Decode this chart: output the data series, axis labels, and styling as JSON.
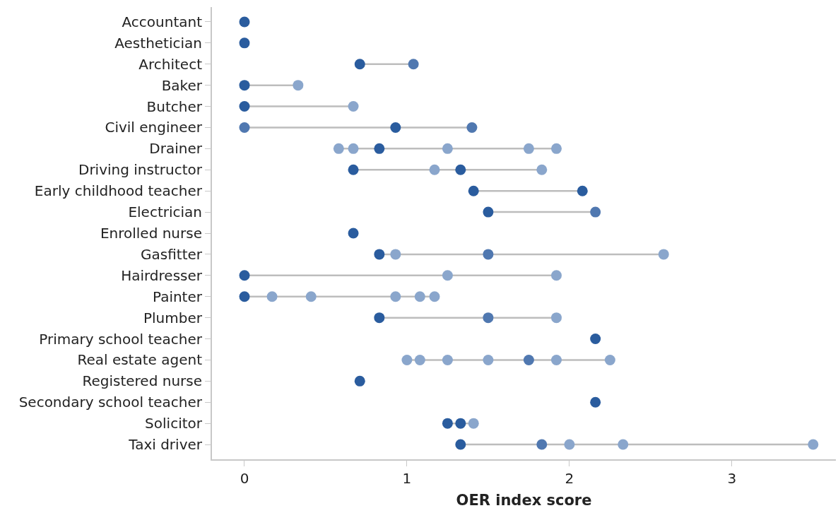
{
  "chart_data": {
    "type": "scatter",
    "orientation": "horizontal",
    "xlabel": "OER index score",
    "categories": [
      "Accountant",
      "Aesthetician",
      "Architect",
      "Baker",
      "Butcher",
      "Civil engineer",
      "Drainer",
      "Driving instructor",
      "Early childhood teacher",
      "Electrician",
      "Enrolled nurse",
      "Gasfitter",
      "Hairdresser",
      "Painter",
      "Plumber",
      "Primary school teacher",
      "Real estate agent",
      "Registered nurse",
      "Secondary school teacher",
      "Solicitor",
      "Taxi driver"
    ],
    "xlim": [
      -0.2,
      3.64
    ],
    "xticks": [
      0,
      1,
      2,
      3
    ],
    "marker": "circle",
    "line_style": "solid",
    "series": [
      {
        "values": [
          0,
          0,
          0.71,
          0,
          0,
          0,
          0.58,
          0.67,
          1.41,
          1.5,
          0.67,
          0.83,
          0,
          0,
          0.83,
          2.16,
          1.0,
          0.71,
          2.16,
          1.25,
          1.33
        ],
        "colors": [
          "#2a5c9e",
          "#2a5c9e",
          "#2a5c9e",
          "#2a5c9e",
          "#2a5c9e",
          "#5078b0",
          "#8aa6cc",
          "#2a5c9e",
          "#2a5c9e",
          "#2a5c9e",
          "#2a5c9e",
          "#2a5c9e",
          "#2a5c9e",
          "#2a5c9e",
          "#2a5c9e",
          "#2a5c9e",
          "#8aa6cc",
          "#2a5c9e",
          "#2a5c9e",
          "#2a5c9e",
          "#2a5c9e"
        ]
      },
      {
        "values": [
          null,
          null,
          1.04,
          0.33,
          0.67,
          0.93,
          0.67,
          1.17,
          2.08,
          2.16,
          null,
          0.93,
          1.25,
          0.17,
          1.5,
          null,
          1.08,
          null,
          null,
          1.33,
          1.83
        ],
        "colors": [
          null,
          null,
          "#5078b0",
          "#8aa6cc",
          "#8aa6cc",
          "#2a5c9e",
          "#8aa6cc",
          "#8aa6cc",
          "#2a5c9e",
          "#5078b0",
          null,
          "#8aa6cc",
          "#8aa6cc",
          "#8aa6cc",
          "#5078b0",
          null,
          "#8aa6cc",
          null,
          null,
          "#2a5c9e",
          "#5078b0"
        ]
      },
      {
        "values": [
          null,
          null,
          null,
          null,
          null,
          1.4,
          0.83,
          1.33,
          null,
          null,
          null,
          1.5,
          1.92,
          0.41,
          1.92,
          null,
          1.25,
          null,
          null,
          1.41,
          2.0
        ],
        "colors": [
          null,
          null,
          null,
          null,
          null,
          "#5078b0",
          "#2a5c9e",
          "#2a5c9e",
          null,
          null,
          null,
          "#5078b0",
          "#8aa6cc",
          "#8aa6cc",
          "#8aa6cc",
          null,
          "#8aa6cc",
          null,
          null,
          "#8aa6cc",
          "#8aa6cc"
        ]
      },
      {
        "values": [
          null,
          null,
          null,
          null,
          null,
          null,
          1.25,
          1.83,
          null,
          null,
          null,
          2.58,
          null,
          0.93,
          null,
          null,
          1.5,
          null,
          null,
          null,
          2.33
        ],
        "colors": [
          null,
          null,
          null,
          null,
          null,
          null,
          "#8aa6cc",
          "#8aa6cc",
          null,
          null,
          null,
          "#8aa6cc",
          null,
          "#8aa6cc",
          null,
          null,
          "#8aa6cc",
          null,
          null,
          null,
          "#8aa6cc"
        ]
      },
      {
        "values": [
          null,
          null,
          null,
          null,
          null,
          null,
          1.75,
          null,
          null,
          null,
          null,
          null,
          null,
          1.08,
          null,
          null,
          1.75,
          null,
          null,
          null,
          3.5
        ],
        "colors": [
          null,
          null,
          null,
          null,
          null,
          null,
          "#8aa6cc",
          null,
          null,
          null,
          null,
          null,
          null,
          "#8aa6cc",
          null,
          null,
          "#5078b0",
          null,
          null,
          null,
          "#8aa6cc"
        ]
      },
      {
        "values": [
          null,
          null,
          null,
          null,
          null,
          null,
          1.92,
          null,
          null,
          null,
          null,
          null,
          null,
          1.17,
          null,
          null,
          1.92,
          null,
          null,
          null,
          null
        ],
        "colors": [
          null,
          null,
          null,
          null,
          null,
          null,
          "#8aa6cc",
          null,
          null,
          null,
          null,
          null,
          null,
          "#8aa6cc",
          null,
          null,
          "#8aa6cc",
          null,
          null,
          null,
          null
        ]
      },
      {
        "values": [
          null,
          null,
          null,
          null,
          null,
          null,
          null,
          null,
          null,
          null,
          null,
          null,
          null,
          null,
          null,
          null,
          2.25,
          null,
          null,
          null,
          null
        ],
        "colors": [
          null,
          null,
          null,
          null,
          null,
          null,
          null,
          null,
          null,
          null,
          null,
          null,
          null,
          null,
          null,
          null,
          "#8aa6cc",
          null,
          null,
          null,
          null
        ]
      }
    ]
  }
}
